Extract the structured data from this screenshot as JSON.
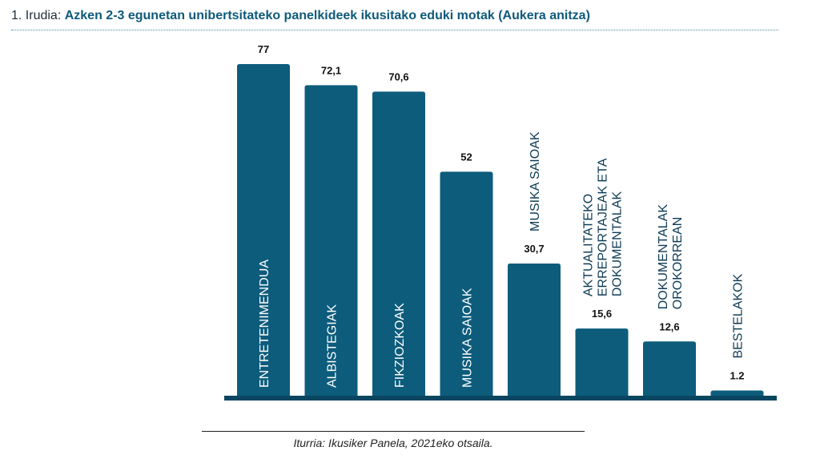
{
  "header": {
    "prefix": "1. Irudia:",
    "title": "Azken 2-3 egunetan unibertsitateko panelkideek ikusitako eduki motak (Aukera anitza)"
  },
  "source": "Iturria: Ikusiker Panela, 2021eko otsaila.",
  "colors": {
    "bar": "#0d5c7c",
    "axis": "#0a4660",
    "label": "#0d3a55",
    "value": "#111111"
  },
  "chart_data": {
    "type": "bar",
    "title": "Azken 2-3 egunetan unibertsitateko panelkideek ikusitako eduki motak (Aukera anitza)",
    "categories": [
      [
        "ENTRETENIMENDUA"
      ],
      [
        "ALBISTEGIAK"
      ],
      [
        "FIKZIOZKOAK"
      ],
      [
        "MUSIKA SAIOAK"
      ],
      [
        "MUSIKA SAIOAK"
      ],
      [
        "AKTUALITATEKO",
        "ERREPORTAJEAK ETA",
        "DOKUMENTALAK"
      ],
      [
        "DOKUMENTALAK",
        "OROKORREAN"
      ],
      [
        "BESTELAKOK"
      ]
    ],
    "values": [
      77,
      72.1,
      70.6,
      52,
      30.7,
      15.6,
      12.6,
      1.2
    ],
    "value_labels": [
      "77",
      "72,1",
      "70,6",
      "52",
      "30,7",
      "15,6",
      "12,6",
      "1.2"
    ],
    "ylim": [
      0,
      77
    ],
    "grid": false,
    "legend": "none"
  }
}
